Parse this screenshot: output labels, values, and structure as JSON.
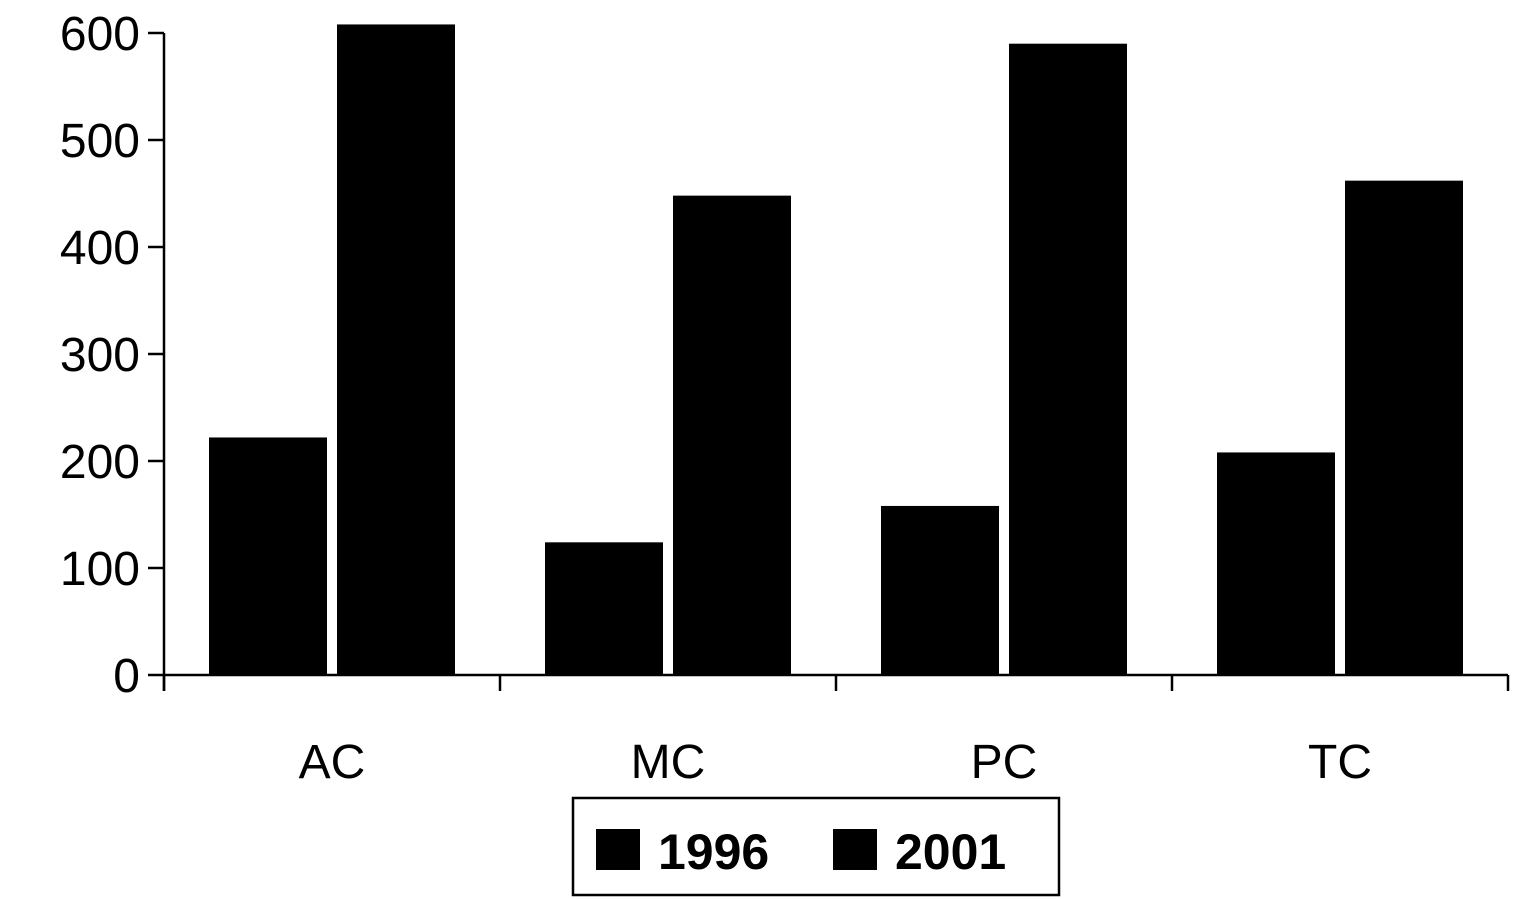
{
  "chart_data": {
    "type": "bar",
    "categories": [
      "AC",
      "MC",
      "PC",
      "TC"
    ],
    "series": [
      {
        "name": "1996",
        "values": [
          222,
          124,
          158,
          208
        ],
        "color": "#000000"
      },
      {
        "name": "2001",
        "values": [
          608,
          448,
          590,
          462
        ],
        "color": "#000000"
      }
    ],
    "y_ticks": [
      "0",
      "100",
      "200",
      "300",
      "400",
      "500",
      "600"
    ],
    "ylim": [
      0,
      600
    ],
    "grid": false,
    "legend_position": "bottom-center",
    "title": "",
    "xlabel": "",
    "ylabel": ""
  }
}
